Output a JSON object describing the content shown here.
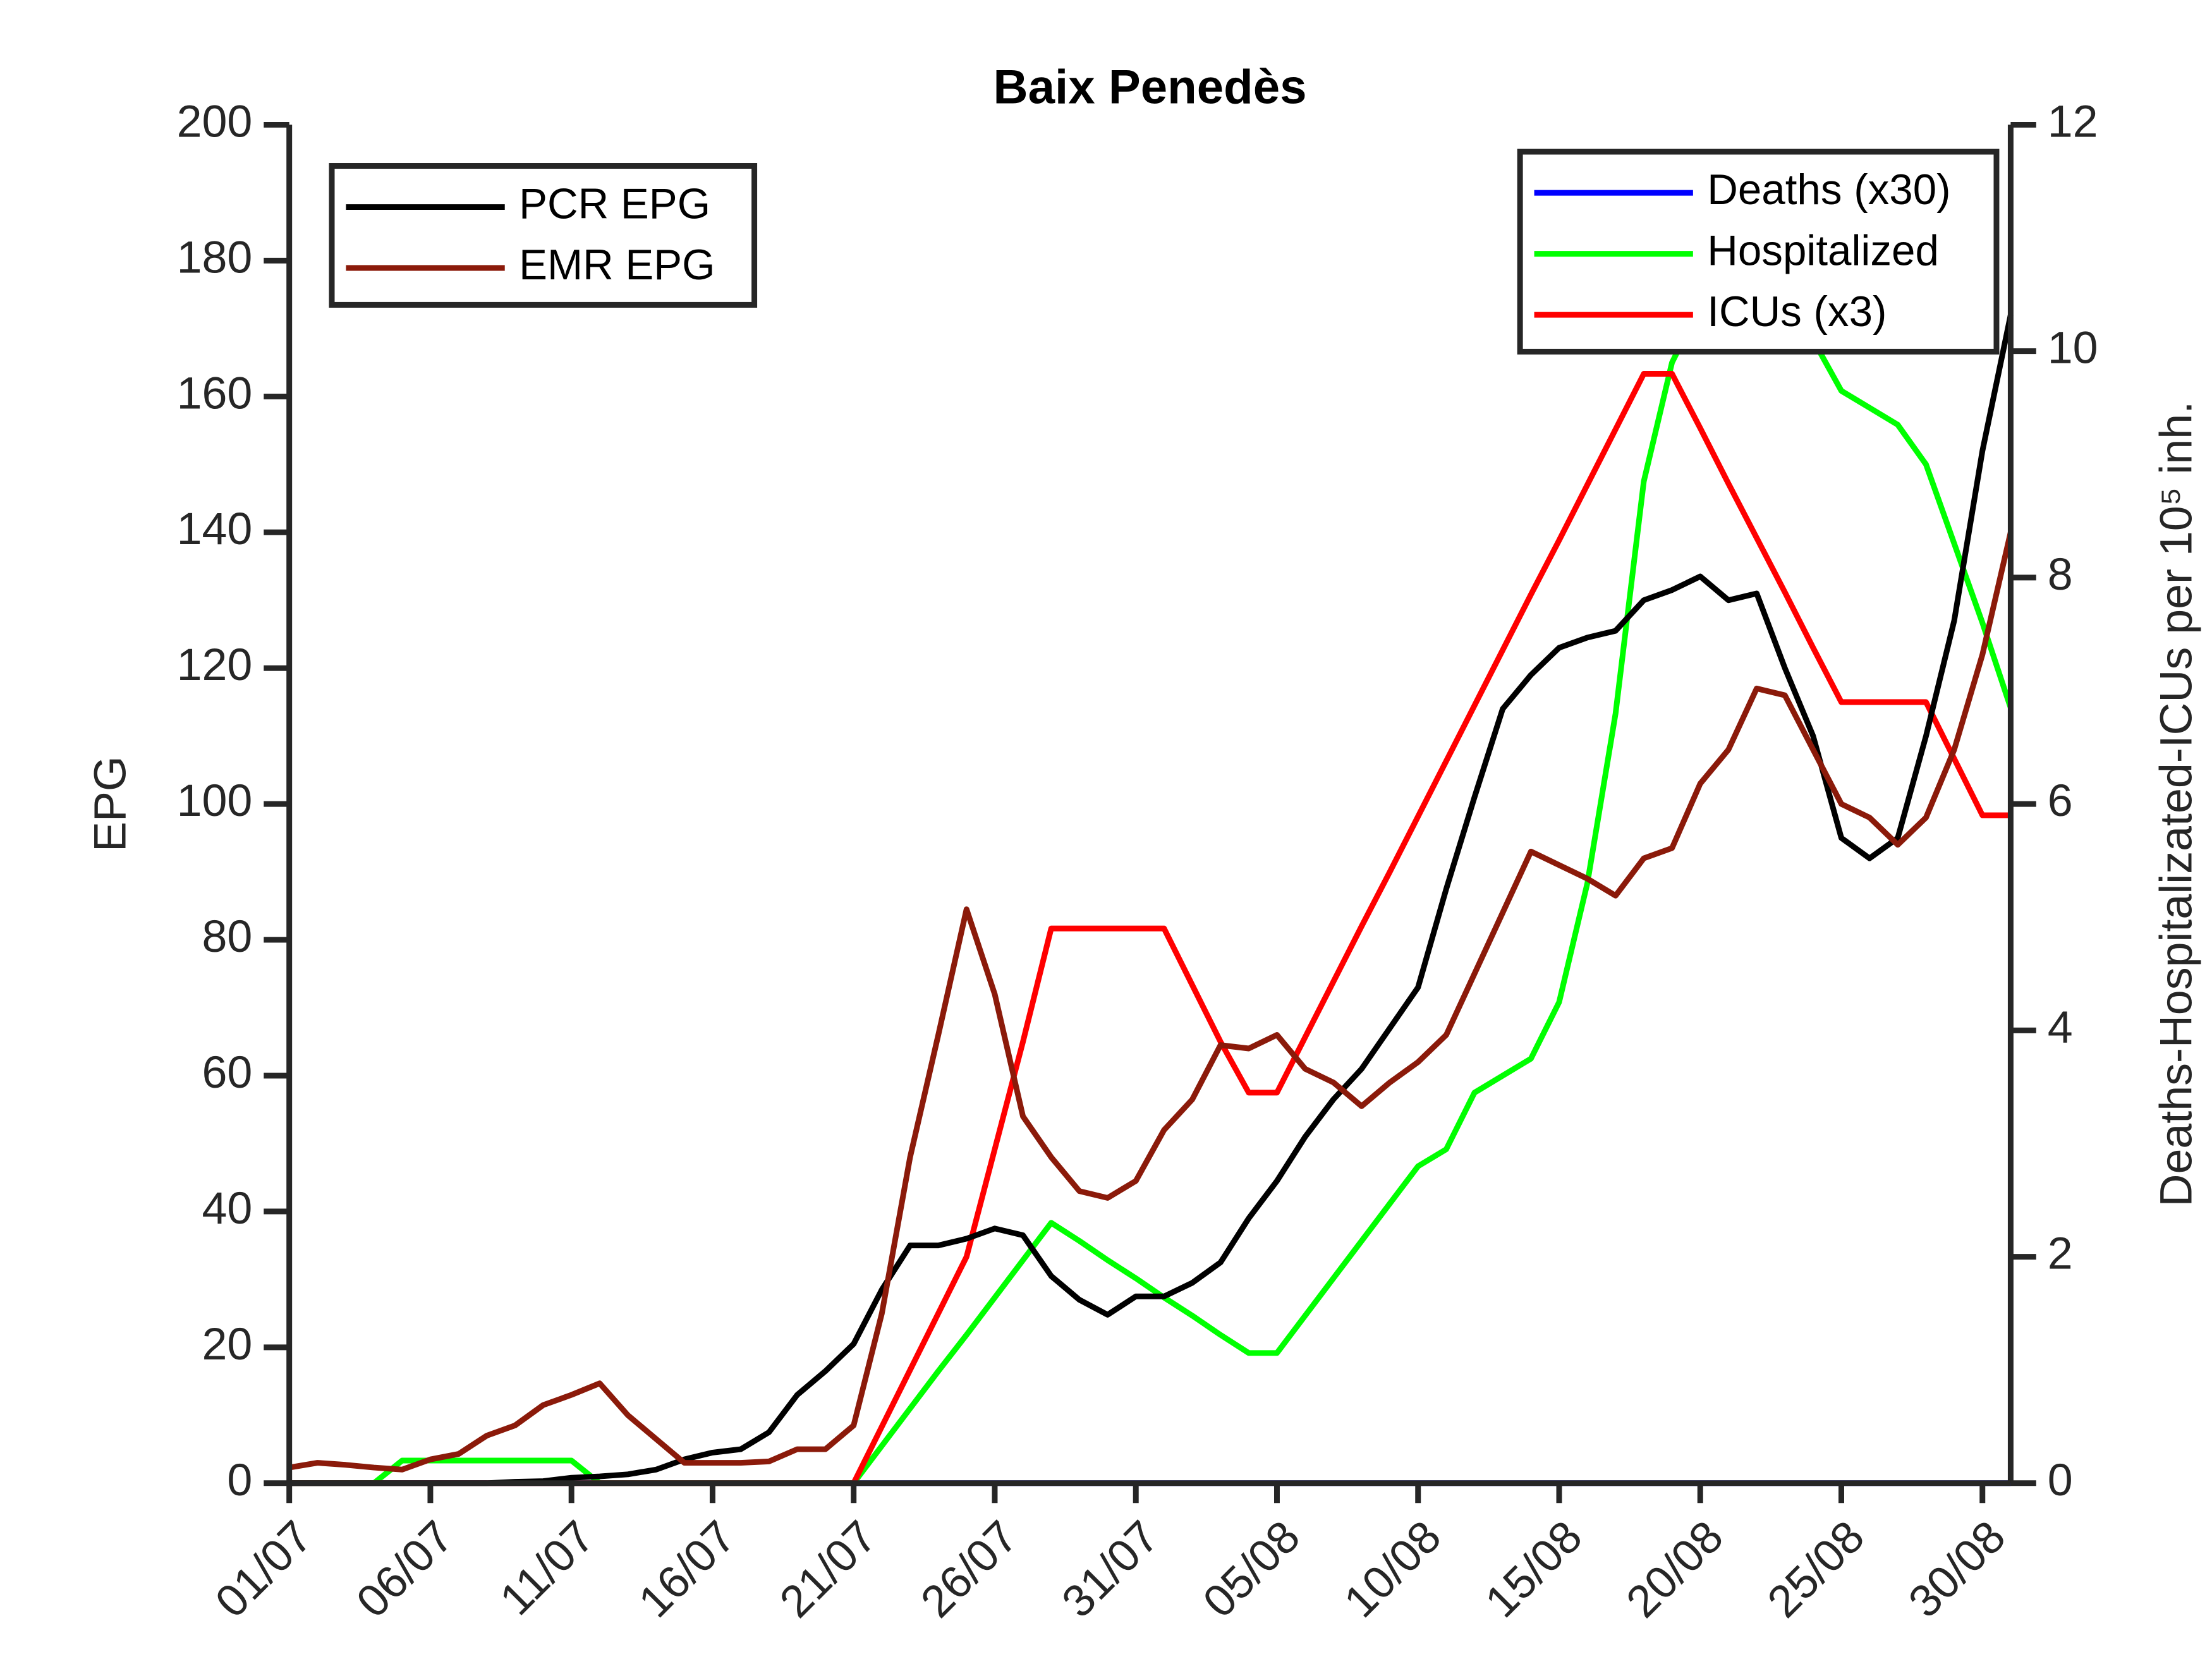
{
  "chart_data": {
    "type": "line",
    "title": "Baix Penedès",
    "ylabel": "EPG",
    "y2label": "Deaths-Hospitalizated-ICUs per 10⁵ inh.",
    "x": [
      "01/07",
      null,
      null,
      null,
      null,
      "06/07",
      null,
      null,
      null,
      null,
      "11/07",
      null,
      null,
      null,
      null,
      "16/07",
      null,
      null,
      null,
      null,
      "21/07",
      null,
      null,
      null,
      null,
      "26/07",
      null,
      null,
      null,
      null,
      "31/07",
      null,
      null,
      null,
      null,
      "05/08",
      null,
      null,
      null,
      null,
      "10/08",
      null,
      null,
      null,
      null,
      "15/08",
      null,
      null,
      null,
      null,
      "20/08",
      null,
      null,
      null,
      null,
      "25/08",
      null,
      null,
      null,
      null,
      "30/08",
      null
    ],
    "ylim": [
      0,
      200
    ],
    "yticks": [
      0,
      20,
      40,
      60,
      80,
      100,
      120,
      140,
      160,
      180,
      200
    ],
    "y2lim": [
      0,
      12
    ],
    "y2ticks": [
      0,
      2,
      4,
      6,
      8,
      10,
      12
    ],
    "legend": "upper left",
    "legend2": "upper right",
    "series": [
      {
        "name": "PCR EPG",
        "color": "#000000",
        "values": [
          0,
          0,
          0,
          0,
          0,
          0,
          0,
          0,
          0.2,
          0.3,
          0.8,
          1.0,
          1.3,
          2.0,
          3.5,
          4.5,
          5.0,
          7.5,
          13,
          16.5,
          20.5,
          28.5,
          35,
          35,
          36,
          37.5,
          36.5,
          30.5,
          27,
          24.8,
          27.5,
          27.5,
          29.5,
          32.5,
          39,
          44.5,
          51,
          56.5,
          61,
          67,
          73,
          87.5,
          101,
          114,
          119,
          123,
          124.5,
          125.5,
          130,
          131.5,
          133.5,
          130,
          131,
          120,
          110,
          95,
          92,
          95,
          110,
          127,
          152,
          172
        ]
      },
      {
        "name": "EMR EPG",
        "color": "#8b1a0a",
        "values": [
          2.3,
          3,
          2.7,
          2.3,
          2,
          3.5,
          4.3,
          7,
          8.5,
          11.5,
          13,
          14.7,
          10,
          6.5,
          3,
          3,
          3,
          3.2,
          5,
          5,
          8.5,
          25,
          48,
          66,
          84.5,
          72,
          54,
          48,
          43,
          42,
          44.5,
          52,
          56.5,
          64.5,
          64,
          66,
          61,
          59,
          55.5,
          59,
          62,
          66,
          75,
          84,
          93,
          91,
          89,
          86.5,
          92,
          93.5,
          103,
          108,
          117,
          116,
          108,
          100,
          98,
          94,
          98,
          108,
          122,
          140
        ]
      },
      {
        "name": "Deaths (x30)",
        "color": "#0000ff",
        "axis": "y2",
        "values": [
          0,
          0,
          0,
          0,
          0,
          0,
          0,
          0,
          0,
          0,
          0,
          0,
          0,
          0,
          0,
          0,
          0,
          0,
          0,
          0,
          0,
          0,
          0,
          0,
          0,
          0,
          0,
          0,
          0,
          0,
          0,
          0,
          0,
          0,
          0,
          0,
          0,
          0,
          0,
          0,
          0,
          0,
          0,
          0,
          0,
          0,
          0,
          0,
          0,
          0,
          0,
          0,
          0,
          0,
          0,
          0,
          0,
          0,
          0,
          0,
          0,
          0
        ]
      },
      {
        "name": "Hospitalized",
        "color": "#00ff00",
        "axis": "y2",
        "values": [
          0,
          0,
          0,
          0,
          0.2,
          0.2,
          0.2,
          0.2,
          0.2,
          0.2,
          0.2,
          0,
          0,
          0,
          0,
          0,
          0,
          0,
          0,
          0,
          0,
          0.33,
          0.66,
          0.99,
          1.31,
          1.64,
          1.97,
          2.3,
          2.14,
          1.97,
          1.81,
          1.64,
          1.48,
          1.31,
          1.15,
          1.15,
          1.48,
          1.81,
          2.14,
          2.47,
          2.8,
          2.95,
          3.45,
          3.6,
          3.75,
          4.25,
          5.3,
          6.8,
          8.85,
          9.9,
          10.4,
          10.9,
          11.0,
          10.5,
          10.1,
          9.65,
          9.5,
          9.35,
          9.0,
          8.3,
          7.6,
          6.85
        ]
      },
      {
        "name": "ICUs (x3)",
        "color": "#ff0000",
        "axis": "y2",
        "values": [
          0,
          0,
          0,
          0,
          0,
          0,
          0,
          0,
          0,
          0,
          0,
          0,
          0,
          0,
          0,
          0,
          0,
          0,
          0,
          0,
          0,
          0.5,
          1,
          1.5,
          2,
          2.95,
          3.9,
          4.9,
          4.9,
          4.9,
          4.9,
          4.9,
          4.4,
          3.9,
          3.45,
          3.45,
          3.94,
          4.43,
          4.92,
          5.4,
          5.89,
          6.38,
          6.87,
          7.36,
          7.85,
          8.33,
          8.82,
          9.31,
          9.8,
          9.8,
          9.32,
          8.83,
          8.35,
          7.87,
          7.38,
          6.9,
          6.9,
          6.9,
          6.9,
          6.4,
          5.9,
          5.9
        ]
      }
    ]
  }
}
